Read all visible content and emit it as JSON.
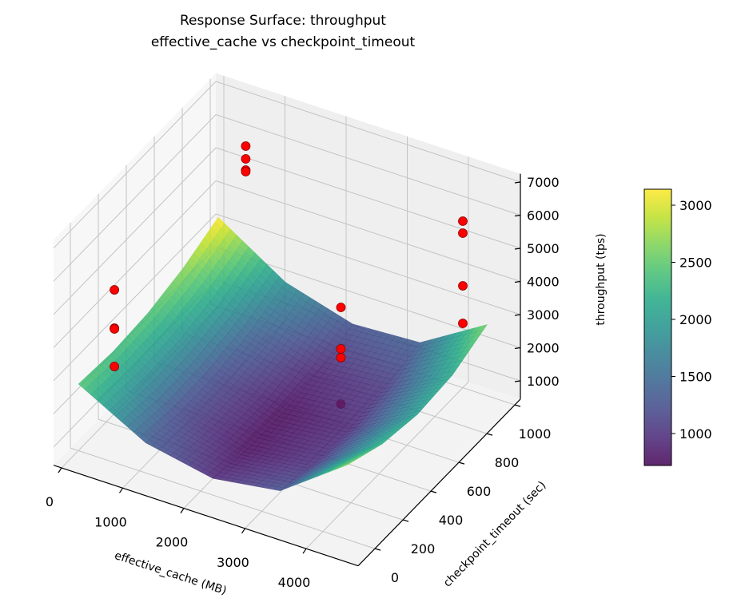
{
  "chart_data": {
    "type": "surface",
    "title": "Response Surface: throughput",
    "subtitle": "effective_cache vs checkpoint_timeout",
    "xlabel": "effective_cache (MB)",
    "ylabel": "checkpoint_timeout (sec)",
    "zlabel": "throughput (tps)",
    "xlim": [
      -130,
      4850
    ],
    "ylim": [
      -120,
      1040
    ],
    "zlim": [
      448,
      7250
    ],
    "xticks": [
      0,
      1000,
      2000,
      3000,
      4000
    ],
    "yticks": [
      0,
      200,
      400,
      600,
      800,
      1000
    ],
    "zticks": [
      1000,
      2000,
      3000,
      4000,
      5000,
      6000,
      7000
    ],
    "grid": true,
    "colormap": "viridis",
    "surface_alpha": 0.85,
    "surface": {
      "x": [
        0,
        1100,
        2200,
        3300,
        4400
      ],
      "y": [
        0,
        250,
        500,
        750,
        1000
      ],
      "z": [
        [
          2459,
          1354,
          950,
          1248,
          2700
        ],
        [
          2362,
          1210,
          759,
          1011,
          2250
        ],
        [
          2446,
          1247,
          749,
          955,
          2050
        ],
        [
          2711,
          1465,
          921,
          1079,
          2150
        ],
        [
          3157,
          1865,
          1274,
          1386,
          2600
        ]
      ]
    },
    "colorbar": {
      "range": [
        720,
        3140
      ],
      "ticks": [
        1000,
        1500,
        2000,
        2500,
        3000
      ]
    },
    "scatter": {
      "color": "#ff0000",
      "edge_color": "#8b0000",
      "points": [
        {
          "x": 590,
          "y": 0,
          "z": 5660
        },
        {
          "x": 590,
          "y": 0,
          "z": 4504
        },
        {
          "x": 590,
          "y": 0,
          "z": 4480
        },
        {
          "x": 590,
          "y": 0,
          "z": 3347
        },
        {
          "x": 450,
          "y": 1000,
          "z": 5576
        },
        {
          "x": 450,
          "y": 1000,
          "z": 5190
        },
        {
          "x": 450,
          "y": 1000,
          "z": 4853
        },
        {
          "x": 450,
          "y": 1000,
          "z": 4805
        },
        {
          "x": 3150,
          "y": 500,
          "z": 4523
        },
        {
          "x": 3150,
          "y": 500,
          "z": 3270
        },
        {
          "x": 3150,
          "y": 500,
          "z": 3005
        },
        {
          "x": 3150,
          "y": 500,
          "z": 1607
        },
        {
          "x": 4000,
          "y": 1000,
          "z": 5475
        },
        {
          "x": 4000,
          "y": 1000,
          "z": 5113
        },
        {
          "x": 4000,
          "y": 1000,
          "z": 3523
        },
        {
          "x": 4000,
          "y": 1000,
          "z": 2390
        }
      ]
    }
  }
}
